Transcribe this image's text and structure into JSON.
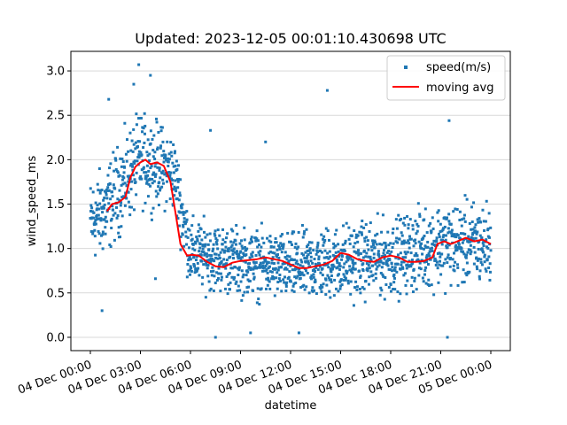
{
  "chart_data": {
    "type": "scatter",
    "title": "Updated: 2023-12-05 00:01:10.430698 UTC",
    "xlabel": "datetime",
    "ylabel": "wind_speed_ms",
    "x_range": [
      "2023-12-04 00:00",
      "2023-12-05 00:00"
    ],
    "ylim": [
      -0.15,
      3.22
    ],
    "y_ticks": [
      "0.0",
      "0.5",
      "1.0",
      "1.5",
      "2.0",
      "2.5",
      "3.0"
    ],
    "x_ticks": [
      "04 Dec 00:00",
      "04 Dec 03:00",
      "04 Dec 06:00",
      "04 Dec 09:00",
      "04 Dec 12:00",
      "04 Dec 15:00",
      "04 Dec 18:00",
      "04 Dec 21:00",
      "05 Dec 00:00"
    ],
    "grid": "horizontal",
    "legend_position": "top-right",
    "colors": {
      "scatter": "#1f77b4",
      "moving_avg": "#ff0000",
      "grid": "#d9d9d9"
    },
    "series": [
      {
        "name": "speed(m/s)",
        "kind": "scatter",
        "description_hours_units": "x in hours after 2023-12-04 00:00",
        "envelope": [
          {
            "x": 0.0,
            "mean": 1.3,
            "spread": 0.55
          },
          {
            "x": 1.0,
            "mean": 1.45,
            "spread": 0.6
          },
          {
            "x": 2.0,
            "mean": 1.75,
            "spread": 0.6
          },
          {
            "x": 3.0,
            "mean": 2.0,
            "spread": 0.6
          },
          {
            "x": 4.0,
            "mean": 1.95,
            "spread": 0.55
          },
          {
            "x": 5.0,
            "mean": 1.85,
            "spread": 0.5
          },
          {
            "x": 6.0,
            "mean": 0.95,
            "spread": 0.45
          },
          {
            "x": 9.0,
            "mean": 0.85,
            "spread": 0.45
          },
          {
            "x": 12.0,
            "mean": 0.78,
            "spread": 0.45
          },
          {
            "x": 15.0,
            "mean": 0.85,
            "spread": 0.5
          },
          {
            "x": 18.0,
            "mean": 0.9,
            "spread": 0.5
          },
          {
            "x": 21.0,
            "mean": 1.05,
            "spread": 0.55
          },
          {
            "x": 24.0,
            "mean": 1.05,
            "spread": 0.55
          }
        ],
        "outliers": [
          {
            "x": 2.9,
            "y": 3.07
          },
          {
            "x": 2.6,
            "y": 2.85
          },
          {
            "x": 3.6,
            "y": 2.95
          },
          {
            "x": 1.1,
            "y": 2.68
          },
          {
            "x": 7.2,
            "y": 2.33
          },
          {
            "x": 10.5,
            "y": 2.2
          },
          {
            "x": 14.2,
            "y": 2.78
          },
          {
            "x": 21.5,
            "y": 2.44
          },
          {
            "x": 0.7,
            "y": 0.3
          },
          {
            "x": 3.9,
            "y": 0.66
          },
          {
            "x": 7.5,
            "y": 0.0
          },
          {
            "x": 12.5,
            "y": 0.05
          },
          {
            "x": 21.4,
            "y": 0.0
          },
          {
            "x": 9.6,
            "y": 0.05
          }
        ]
      },
      {
        "name": "moving avg",
        "kind": "line",
        "x_hours": [
          1.0,
          1.3,
          1.7,
          2.1,
          2.4,
          2.7,
          3.0,
          3.3,
          3.6,
          4.0,
          4.4,
          4.8,
          5.1,
          5.4,
          5.8,
          6.1,
          6.5,
          7.0,
          7.5,
          8.0,
          8.5,
          9.0,
          9.5,
          10.0,
          10.5,
          11.0,
          11.5,
          12.0,
          12.5,
          13.0,
          13.5,
          14.0,
          14.5,
          15.0,
          15.5,
          16.0,
          16.5,
          17.0,
          17.5,
          18.0,
          18.5,
          19.0,
          19.5,
          20.0,
          20.5,
          20.8,
          21.2,
          21.6,
          22.0,
          22.5,
          23.0,
          23.5,
          24.0
        ],
        "values": [
          1.42,
          1.5,
          1.52,
          1.58,
          1.8,
          1.92,
          1.97,
          2.0,
          1.95,
          1.97,
          1.93,
          1.75,
          1.4,
          1.05,
          0.92,
          0.93,
          0.92,
          0.85,
          0.8,
          0.79,
          0.84,
          0.86,
          0.87,
          0.88,
          0.9,
          0.88,
          0.86,
          0.82,
          0.78,
          0.78,
          0.8,
          0.82,
          0.86,
          0.95,
          0.93,
          0.88,
          0.86,
          0.85,
          0.9,
          0.92,
          0.9,
          0.85,
          0.85,
          0.86,
          0.9,
          1.05,
          1.08,
          1.05,
          1.08,
          1.12,
          1.08,
          1.1,
          1.05
        ]
      }
    ]
  }
}
